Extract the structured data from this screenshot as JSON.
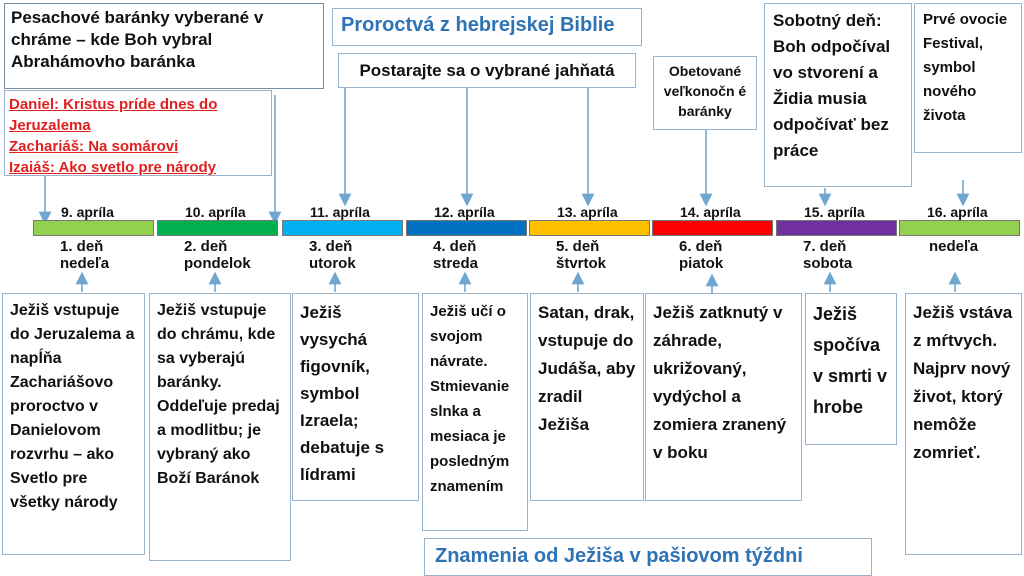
{
  "titles": {
    "main": "Proroctvá z hebrejskej Biblie",
    "bottom": "Znamenia od Ježiša v pašiovom týždni"
  },
  "top_notes": {
    "lambs_chosen": "Pesachové baránky vyberané v chráme – kde Boh vybral Abrahámovho baránka",
    "prophecies": [
      "Daniel: Kristus príde dnes do Jeruzalema",
      "Zachariáš: Na somárovi",
      "Izaiáš: Ako svetlo pre národy"
    ],
    "care_lambs": "Postarajte sa o vybrané jahňatá",
    "sacrificed": "Obetované veľkonočn é baránky",
    "sabbath": "Sobotný deň: Boh odpočíval vo stvorení a Židia musia odpočívať bez práce",
    "firstfruits": "Prvé ovocie Festival, symbol nového života"
  },
  "colors": {
    "title": "#2e74b5",
    "prophecy": "#e02020",
    "border": "#9ab3cc",
    "arrow": "#6fa6d0"
  },
  "timeline": [
    {
      "date": "9. apríla",
      "day": "1. deň nedeľa",
      "color": "#92d050",
      "event": "Ježiš vstupuje do Jeruzalema a napĺňa Zachariášovo proroctvo v Danielovom rozvrhu – ako Svetlo pre všetky národy"
    },
    {
      "date": "10. apríla",
      "day": "2. deň pondelok",
      "color": "#00b050",
      "event": "Ježiš vstupuje do chrámu, kde sa vyberajú baránky. Oddeľuje predaj a modlitbu; je vybraný ako Boží Baránok"
    },
    {
      "date": "11. apríla",
      "day": "3. deň utorok",
      "color": "#00b0f0",
      "event": "Ježiš vysychá figovník, symbol Izraela; debatuje s lídrami"
    },
    {
      "date": "12. apríla",
      "day": "4. deň streda",
      "color": "#0070c0",
      "event": "Ježiš učí o svojom návrate. Stmievanie slnka a mesiaca je posledným znamením"
    },
    {
      "date": "13. apríla",
      "day": "5. deň štvrtok",
      "color": "#ffc000",
      "event": "Satan, drak, vstupuje do Judáša, aby zradil Ježiša"
    },
    {
      "date": "14. apríla",
      "day": "6. deň piatok",
      "color": "#ff0000",
      "event": "Ježiš zatknutý v záhrade, ukrižovaný, vydýchol a zomiera zranený v boku"
    },
    {
      "date": "15. apríla",
      "day": "7. deň sobota",
      "color": "#7030a0",
      "event": "Ježiš spočíva v smrti v hrobe"
    },
    {
      "date": "16. apríla",
      "day": "nedeľa",
      "color": "#92d050",
      "event": "Ježiš vstáva z mŕtvych. Najprv nový život, ktorý nemôže zomrieť."
    }
  ]
}
